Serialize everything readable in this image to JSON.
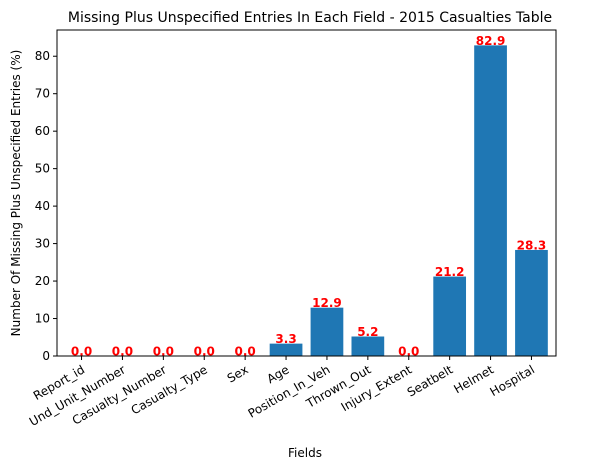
{
  "chart_data": {
    "type": "bar",
    "title": "Missing Plus Unspecified Entries In Each Field - 2015 Casualties Table",
    "xlabel": "Fields",
    "ylabel": "Number Of Missing Plus Unspecified Entries (%)",
    "categories": [
      "Report_id",
      "Und_Unit_Number",
      "Casualty_Number",
      "Casualty_Type",
      "Sex",
      "Age",
      "Position_In_Veh",
      "Thrown_Out",
      "Injury_Extent",
      "Seatbelt",
      "Helmet",
      "Hospital"
    ],
    "values": [
      0.0,
      0.0,
      0.0,
      0.0,
      0.0,
      3.3,
      12.9,
      5.2,
      0.0,
      21.2,
      82.9,
      28.3
    ],
    "value_labels": [
      "0.0",
      "0.0",
      "0.0",
      "0.0",
      "0.0",
      "3.3",
      "12.9",
      "5.2",
      "0.0",
      "21.2",
      "82.9",
      "28.3"
    ],
    "ylim": [
      0,
      87.0
    ],
    "yticks": [
      0,
      10,
      20,
      30,
      40,
      50,
      60,
      70,
      80
    ],
    "ytick_labels": [
      "0",
      "10",
      "20",
      "30",
      "40",
      "50",
      "60",
      "70",
      "80"
    ],
    "grid": false,
    "legend": "none",
    "bar_color": "#1f77b4",
    "label_color": "#ff0000"
  }
}
